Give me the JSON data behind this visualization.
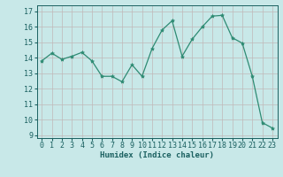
{
  "x": [
    0,
    1,
    2,
    3,
    4,
    5,
    6,
    7,
    8,
    9,
    10,
    11,
    12,
    13,
    14,
    15,
    16,
    17,
    18,
    19,
    20,
    21,
    22,
    23
  ],
  "y": [
    13.8,
    14.3,
    13.9,
    14.1,
    14.35,
    13.8,
    12.8,
    12.8,
    12.45,
    13.55,
    12.8,
    14.6,
    15.8,
    16.4,
    14.1,
    15.2,
    16.0,
    16.7,
    16.75,
    15.3,
    14.95,
    12.8,
    9.8,
    9.45
  ],
  "line_color": "#2e8b73",
  "marker": "*",
  "marker_size": 3,
  "bg_color": "#c8e8e8",
  "grid_color_major": "#c0b8b8",
  "grid_color_minor": "#c0b8b8",
  "xlabel": "Humidex (Indice chaleur)",
  "ylim": [
    8.8,
    17.4
  ],
  "yticks": [
    9,
    10,
    11,
    12,
    13,
    14,
    15,
    16,
    17
  ],
  "xticks": [
    0,
    1,
    2,
    3,
    4,
    5,
    6,
    7,
    8,
    9,
    10,
    11,
    12,
    13,
    14,
    15,
    16,
    17,
    18,
    19,
    20,
    21,
    22,
    23
  ],
  "xlabel_fontsize": 6.5,
  "tick_fontsize": 6,
  "tick_color": "#1a6060",
  "label_color": "#1a6060",
  "spine_color": "#1a6060"
}
